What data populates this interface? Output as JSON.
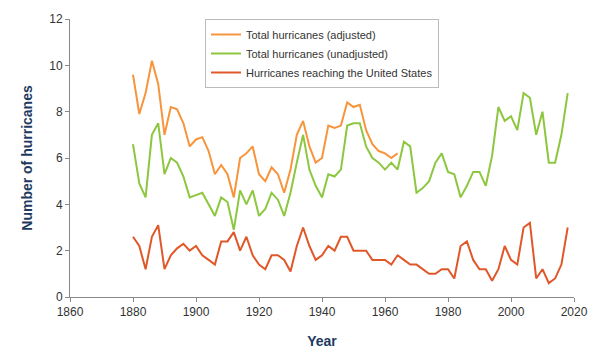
{
  "chart_data": {
    "type": "line",
    "x_label": "Year",
    "y_label": "Number of hurricanes",
    "x": [
      1880,
      1882,
      1884,
      1886,
      1888,
      1890,
      1892,
      1894,
      1896,
      1898,
      1900,
      1902,
      1904,
      1906,
      1908,
      1910,
      1912,
      1914,
      1916,
      1918,
      1920,
      1922,
      1924,
      1926,
      1928,
      1930,
      1932,
      1934,
      1936,
      1938,
      1940,
      1942,
      1944,
      1946,
      1948,
      1950,
      1952,
      1954,
      1956,
      1958,
      1960,
      1962,
      1964,
      1966,
      1968,
      1970,
      1972,
      1974,
      1976,
      1978,
      1980,
      1982,
      1984,
      1986,
      1988,
      1990,
      1992,
      1994,
      1996,
      1998,
      2000,
      2002,
      2004,
      2006,
      2008,
      2010,
      2012,
      2014,
      2016,
      2018
    ],
    "series": [
      {
        "name": "Total hurricanes (adjusted)",
        "color": "#f7943c",
        "values": [
          9.6,
          7.9,
          8.8,
          10.2,
          9.2,
          7.0,
          8.2,
          8.1,
          7.5,
          6.5,
          6.8,
          6.9,
          6.3,
          5.3,
          5.7,
          5.3,
          4.3,
          6.0,
          6.2,
          6.5,
          5.3,
          5.0,
          5.6,
          5.3,
          4.5,
          5.5,
          7.0,
          7.6,
          6.5,
          5.8,
          6.0,
          7.4,
          7.3,
          7.4,
          8.4,
          8.2,
          8.3,
          7.2,
          6.6,
          6.3,
          6.2,
          6.0,
          6.2,
          null,
          null,
          null,
          null,
          null,
          null,
          null,
          null,
          null,
          null,
          null,
          null,
          null,
          null,
          null,
          null,
          null,
          null,
          null,
          null,
          null,
          null,
          null,
          null,
          null,
          null,
          null
        ]
      },
      {
        "name": "Total hurricanes (unadjusted)",
        "color": "#8dc63f",
        "values": [
          6.6,
          4.9,
          4.3,
          7.0,
          7.5,
          5.3,
          6.0,
          5.8,
          5.2,
          4.3,
          4.4,
          4.5,
          4.0,
          3.5,
          4.3,
          4.1,
          2.9,
          4.6,
          4.0,
          4.6,
          3.5,
          3.8,
          4.5,
          4.2,
          3.5,
          4.5,
          5.8,
          7.0,
          5.5,
          4.8,
          4.3,
          5.3,
          5.2,
          5.5,
          7.4,
          7.5,
          7.5,
          6.5,
          6.0,
          5.8,
          5.5,
          5.8,
          5.5,
          6.7,
          6.5,
          4.5,
          4.7,
          5.0,
          5.8,
          6.2,
          5.4,
          5.3,
          4.3,
          4.8,
          5.4,
          5.4,
          4.8,
          6.1,
          8.2,
          7.6,
          7.8,
          7.2,
          8.8,
          8.6,
          7.0,
          8.0,
          5.8,
          5.8,
          7.0,
          8.8
        ]
      },
      {
        "name": "Hurricanes reaching the United States",
        "color": "#e0582a",
        "values": [
          2.6,
          2.2,
          1.2,
          2.6,
          3.1,
          1.2,
          1.8,
          2.1,
          2.3,
          2.0,
          2.2,
          1.8,
          1.6,
          1.4,
          2.4,
          2.4,
          2.8,
          2.0,
          2.6,
          1.8,
          1.4,
          1.2,
          1.8,
          1.8,
          1.6,
          1.1,
          2.2,
          3.0,
          2.2,
          1.6,
          1.8,
          2.2,
          2.0,
          2.6,
          2.6,
          2.0,
          2.0,
          2.0,
          1.6,
          1.6,
          1.6,
          1.4,
          1.8,
          1.6,
          1.4,
          1.4,
          1.2,
          1.0,
          1.0,
          1.2,
          1.2,
          0.8,
          2.2,
          2.4,
          1.6,
          1.2,
          1.2,
          0.7,
          1.2,
          2.2,
          1.6,
          1.4,
          3.0,
          3.2,
          0.8,
          1.2,
          0.6,
          0.8,
          1.4,
          3.0
        ]
      }
    ],
    "xlim": [
      1860,
      2020
    ],
    "xticks": [
      1860,
      1880,
      1900,
      1920,
      1940,
      1960,
      1980,
      2000,
      2020
    ],
    "ylim": [
      0,
      12
    ],
    "yticks": [
      0,
      2,
      4,
      6,
      8,
      10,
      12
    ],
    "grid": false,
    "legend": "top"
  }
}
